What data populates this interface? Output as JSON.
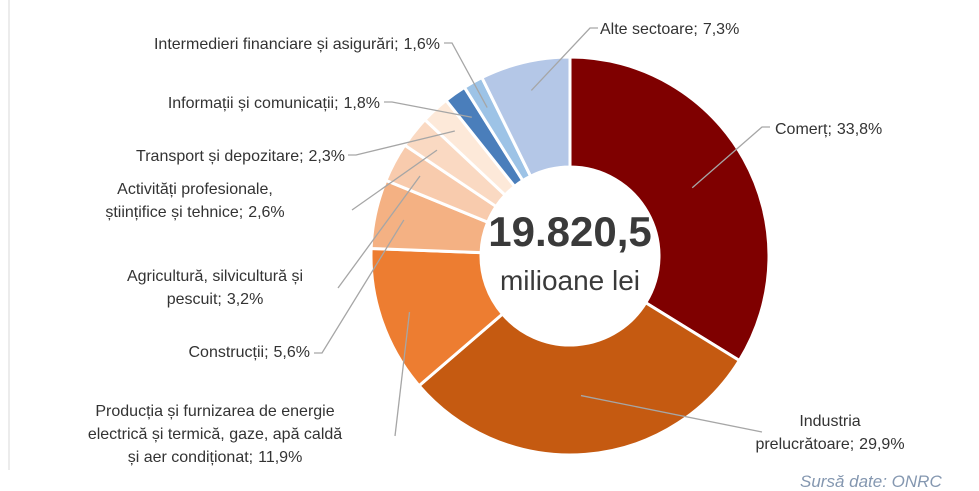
{
  "chart_data": {
    "type": "donut",
    "center_value": "19.820,5",
    "center_unit": "milioane lei",
    "source": "Sursă date: ONRC",
    "categories": [
      [
        "Comerț;"
      ],
      [
        "Industria",
        "prelucrătoare;"
      ],
      [
        "Producția și furnizarea de energie",
        "electrică și termică, gaze, apă caldă",
        "și aer condiționat;"
      ],
      [
        "Construcții;"
      ],
      [
        "Agricultură, silvicultură și",
        "pescuit;"
      ],
      [
        "Activități profesionale,",
        "științifice și tehnice;"
      ],
      [
        "Transport și depozitare;"
      ],
      [
        "Informații și comunicații;"
      ],
      [
        "Intermedieri financiare și asigurări;"
      ],
      [
        "Alte sectoare;"
      ]
    ],
    "values": [
      33.8,
      29.9,
      11.9,
      5.6,
      3.2,
      2.6,
      2.3,
      1.8,
      1.6,
      7.3
    ],
    "value_labels": [
      "33,8%",
      "29,9%",
      "11,9%",
      "5,6%",
      "3,2%",
      "2,6%",
      "2,3%",
      "1,8%",
      "1,6%",
      "7,3%"
    ],
    "colors": [
      "#7f0000",
      "#c55a11",
      "#ed7d31",
      "#f4b183",
      "#f8cbad",
      "#fad9c2",
      "#fde9d9",
      "#4a7ebb",
      "#9dc3e6",
      "#b4c7e7"
    ]
  }
}
